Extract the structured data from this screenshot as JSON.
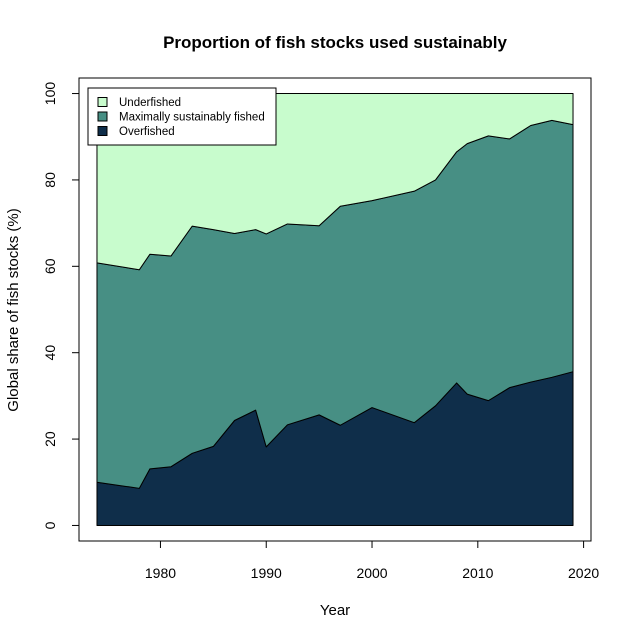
{
  "chart_data": {
    "type": "area",
    "stacked": true,
    "title": "Proportion of fish stocks used sustainably",
    "xlabel": "Year",
    "ylabel": "Global share of fish stocks (%)",
    "xlim": [
      1972.3,
      2020.7
    ],
    "ylim": [
      -3.6,
      103.6
    ],
    "xticks": [
      1980,
      1990,
      2000,
      2010,
      2020
    ],
    "yticks": [
      0,
      20,
      40,
      60,
      80,
      100
    ],
    "x": [
      1974,
      1978,
      1979,
      1981,
      1983,
      1985,
      1987,
      1989,
      1990,
      1992,
      1995,
      1997,
      2000,
      2004,
      2006,
      2008,
      2009,
      2011,
      2013,
      2015,
      2017,
      2019
    ],
    "series": [
      {
        "name": "Overfished",
        "color": "#0f2e4a",
        "values": [
          10.0,
          8.6,
          13.1,
          13.6,
          16.7,
          18.3,
          24.3,
          26.7,
          18.2,
          23.3,
          25.6,
          23.2,
          27.3,
          23.8,
          27.7,
          33.0,
          30.4,
          28.9,
          31.9,
          33.2,
          34.3,
          35.6
        ]
      },
      {
        "name": "Maximally sustainably fished",
        "color": "#478f84",
        "values": [
          50.8,
          50.6,
          49.7,
          48.8,
          52.6,
          50.2,
          43.3,
          41.8,
          49.3,
          46.5,
          43.8,
          50.7,
          47.9,
          53.6,
          52.3,
          53.5,
          58.0,
          61.3,
          57.6,
          59.4,
          59.5,
          57.2
        ]
      },
      {
        "name": "Underfished",
        "color": "#c8fccd",
        "values": [
          39.2,
          40.8,
          37.2,
          37.6,
          30.7,
          31.5,
          32.4,
          31.5,
          32.5,
          30.2,
          30.6,
          26.1,
          24.8,
          22.6,
          20.0,
          13.5,
          11.6,
          9.8,
          10.5,
          7.4,
          6.2,
          7.2
        ]
      }
    ],
    "legend_order": [
      "Underfished",
      "Maximally sustainably fished",
      "Overfished"
    ],
    "legend_position": "top-left",
    "grid": false
  }
}
